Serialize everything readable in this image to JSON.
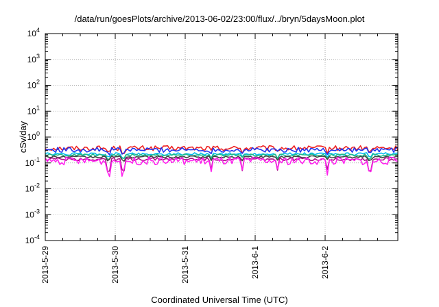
{
  "chart_data": {
    "type": "line",
    "title": "/data/run/goesPlots/archive/2013-06-02/23:00/flux/../bryn/5daysMoon.plot",
    "xlabel": "Coordinated Universal Time (UTC)",
    "ylabel": "cSv/day",
    "x_tick_labels": [
      "2013-5-29",
      "2013-5-30",
      "2013-5-31",
      "2013-6-1",
      "2013-6-2"
    ],
    "x_range": [
      "2013-5-29",
      "2013-6-3"
    ],
    "y_scale": "log",
    "y_range": [
      0.0001,
      10000
    ],
    "y_tick_labels": [
      {
        "base": "10",
        "exp": "4"
      },
      {
        "base": "10",
        "exp": "3"
      },
      {
        "base": "10",
        "exp": "2"
      },
      {
        "base": "10",
        "exp": "1"
      },
      {
        "base": "10",
        "exp": "0"
      },
      {
        "base": "10",
        "exp": "-1"
      },
      {
        "base": "10",
        "exp": "-2"
      },
      {
        "base": "10",
        "exp": "-3"
      },
      {
        "base": "10",
        "exp": "-4"
      }
    ],
    "grid": true,
    "series": [
      {
        "color": "#ee2222",
        "level": 0.37,
        "noise": 0.22
      },
      {
        "color": "#2233ee",
        "level": 0.32,
        "noise": 0.22
      },
      {
        "color": "#00bbee",
        "level": 0.22,
        "noise": 0.12
      },
      {
        "color": "#22bb88",
        "level": 0.2,
        "noise": 0.1
      },
      {
        "color": "#444444",
        "level": 0.17,
        "noise": 0.1
      },
      {
        "color": "#aa1188",
        "level": 0.14,
        "noise": 0.14
      },
      {
        "color": "#ff22ee",
        "level": 0.12,
        "noise": 0.35
      }
    ]
  }
}
